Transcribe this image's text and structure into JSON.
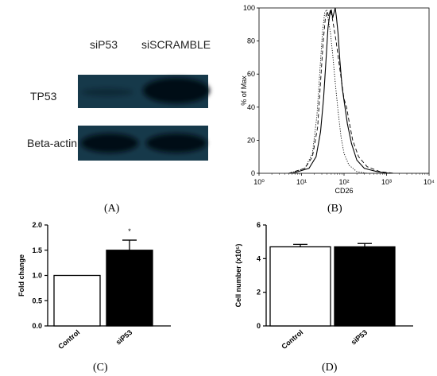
{
  "panels": {
    "A": {
      "caption": "(A)",
      "lanes": [
        "siP53",
        "siSCRAMBLE"
      ],
      "rows": [
        "TP53",
        "Beta-actin"
      ],
      "blot_color": "#16394a",
      "band_color": "#050d12"
    },
    "B": {
      "caption": "(B)"
    },
    "C": {
      "caption": "(C)"
    },
    "D": {
      "caption": "(D)"
    }
  },
  "chart_data": [
    {
      "panel": "B",
      "type": "line",
      "xlabel": "CD26",
      "ylabel": "% of Max",
      "xscale": "log",
      "xlim": [
        1,
        10000
      ],
      "ylim": [
        0,
        100
      ],
      "x_ticks": [
        1,
        10,
        100,
        1000,
        10000
      ],
      "x_tick_labels": [
        "10⁰",
        "10¹",
        "10²",
        "10³",
        "10⁴"
      ],
      "y_ticks": [
        0,
        20,
        40,
        60,
        80,
        100
      ],
      "series": [
        {
          "style": "solid",
          "points": [
            [
              6,
              0
            ],
            [
              15,
              3
            ],
            [
              22,
              10
            ],
            [
              28,
              25
            ],
            [
              33,
              45
            ],
            [
              38,
              70
            ],
            [
              42,
              88
            ],
            [
              46,
              96
            ],
            [
              50,
              99
            ],
            [
              54,
              94
            ],
            [
              58,
              97
            ],
            [
              62,
              100
            ],
            [
              66,
              95
            ],
            [
              72,
              85
            ],
            [
              80,
              68
            ],
            [
              90,
              52
            ],
            [
              100,
              44
            ],
            [
              120,
              30
            ],
            [
              150,
              18
            ],
            [
              200,
              8
            ],
            [
              300,
              3
            ],
            [
              600,
              1
            ],
            [
              1200,
              0
            ]
          ]
        },
        {
          "style": "dashed",
          "points": [
            [
              5,
              0
            ],
            [
              12,
              3
            ],
            [
              18,
              10
            ],
            [
              24,
              28
            ],
            [
              28,
              55
            ],
            [
              32,
              78
            ],
            [
              36,
              93
            ],
            [
              40,
              98
            ],
            [
              44,
              95
            ],
            [
              48,
              99
            ],
            [
              52,
              95
            ],
            [
              58,
              88
            ],
            [
              65,
              80
            ],
            [
              75,
              68
            ],
            [
              85,
              58
            ],
            [
              100,
              45
            ],
            [
              115,
              40
            ],
            [
              130,
              32
            ],
            [
              160,
              20
            ],
            [
              220,
              10
            ],
            [
              350,
              4
            ],
            [
              700,
              1
            ],
            [
              1500,
              0
            ]
          ]
        },
        {
          "style": "dotted",
          "points": [
            [
              5,
              0
            ],
            [
              12,
              3
            ],
            [
              18,
              12
            ],
            [
              23,
              35
            ],
            [
              27,
              62
            ],
            [
              31,
              85
            ],
            [
              35,
              97
            ],
            [
              39,
              99
            ],
            [
              43,
              92
            ],
            [
              48,
              85
            ],
            [
              54,
              72
            ],
            [
              62,
              55
            ],
            [
              72,
              38
            ],
            [
              85,
              22
            ],
            [
              100,
              12
            ],
            [
              130,
              5
            ],
            [
              200,
              1
            ],
            [
              350,
              0
            ]
          ]
        }
      ]
    },
    {
      "panel": "C",
      "type": "bar",
      "categories": [
        "Control",
        "siP53"
      ],
      "values": [
        1.0,
        1.5
      ],
      "errors": [
        0,
        0.2
      ],
      "fills": [
        "#ffffff",
        "#000000"
      ],
      "ylabel": "Fold change",
      "ylim": [
        0,
        2.0
      ],
      "y_ticks": [
        0,
        0.5,
        1.0,
        1.5,
        2.0
      ],
      "y_tick_labels": [
        "0.0",
        "0.5",
        "1.0",
        "1.5",
        "2.0"
      ],
      "annotation": "*"
    },
    {
      "panel": "D",
      "type": "bar",
      "categories": [
        "Control",
        "siP53"
      ],
      "values": [
        4.7,
        4.7
      ],
      "errors": [
        0.15,
        0.2
      ],
      "fills": [
        "#ffffff",
        "#000000"
      ],
      "ylabel": "Cell number (x10⁵)",
      "ylim": [
        0,
        6
      ],
      "y_ticks": [
        0,
        2,
        4,
        6
      ],
      "y_tick_labels": [
        "0",
        "2",
        "4",
        "6"
      ]
    }
  ]
}
